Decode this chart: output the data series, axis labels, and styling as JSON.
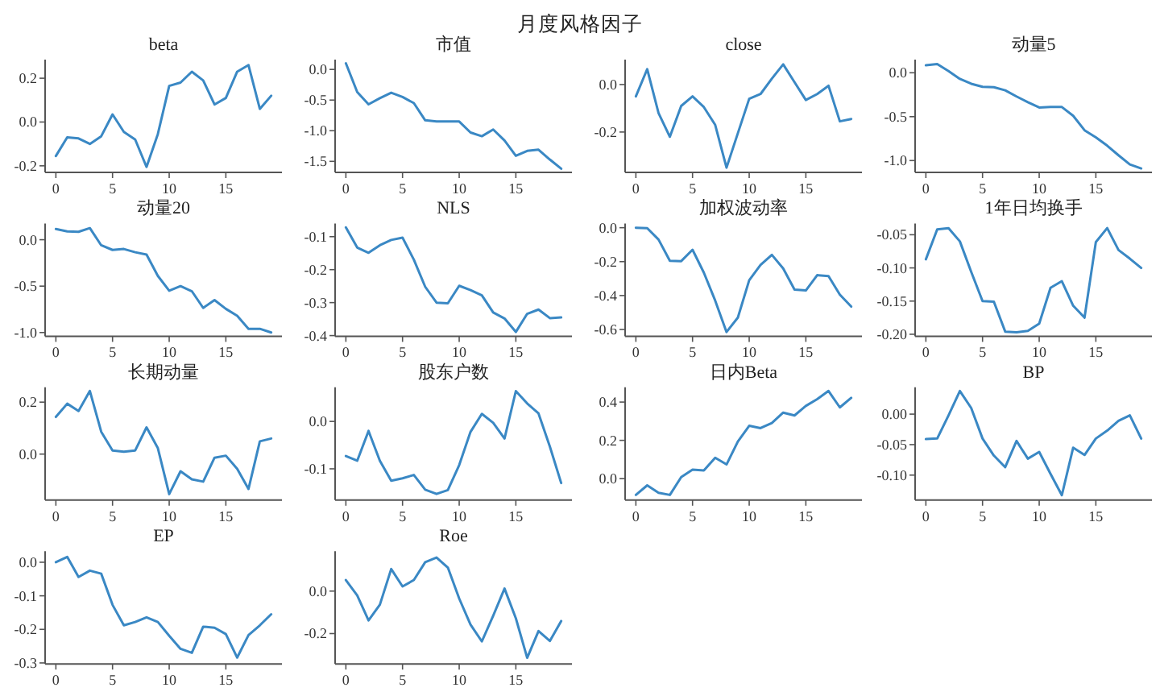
{
  "chart_data": [
    {
      "type": "line",
      "title": "beta",
      "annotations": [
        "月度风格因子"
      ],
      "x": [
        0,
        1,
        2,
        3,
        4,
        5,
        6,
        7,
        8,
        9,
        10,
        11,
        12,
        13,
        14,
        15,
        16,
        17,
        18,
        19
      ],
      "xlim": [
        -0.95,
        19.95
      ],
      "xticks": [
        0,
        5,
        10,
        15
      ],
      "ylim": [
        -0.23,
        0.285
      ],
      "yticks": [
        {
          "value": -0.2,
          "label": "-0.2"
        },
        {
          "value": 0,
          "label": "0.0"
        },
        {
          "value": 0.2,
          "label": "0.2"
        }
      ],
      "series": [
        {
          "color": "#3a88c4",
          "values": [
            -0.155,
            -0.07,
            -0.075,
            -0.1,
            -0.065,
            0.035,
            -0.045,
            -0.08,
            -0.205,
            -0.055,
            0.165,
            0.18,
            0.23,
            0.19,
            0.08,
            0.11,
            0.23,
            0.26,
            0.06,
            0.12
          ]
        }
      ]
    },
    {
      "type": "line",
      "title": "市值",
      "x": [
        0,
        1,
        2,
        3,
        4,
        5,
        6,
        7,
        8,
        9,
        10,
        11,
        12,
        13,
        14,
        15,
        16,
        17,
        18,
        19
      ],
      "xlim": [
        -0.95,
        19.95
      ],
      "xticks": [
        0,
        5,
        10,
        15
      ],
      "ylim": [
        -1.68,
        0.16
      ],
      "yticks": [
        {
          "value": -1.5,
          "label": "-1.5"
        },
        {
          "value": -1,
          "label": "-1.0"
        },
        {
          "value": -0.5,
          "label": "-0.5"
        },
        {
          "value": 0,
          "label": "0.0"
        }
      ],
      "series": [
        {
          "color": "#3a88c4",
          "values": [
            0.1,
            -0.37,
            -0.57,
            -0.47,
            -0.38,
            -0.45,
            -0.55,
            -0.83,
            -0.85,
            -0.85,
            -0.85,
            -1.03,
            -1.09,
            -0.98,
            -1.16,
            -1.41,
            -1.33,
            -1.31,
            -1.47,
            -1.62
          ]
        }
      ]
    },
    {
      "type": "line",
      "title": "close",
      "x": [
        0,
        1,
        2,
        3,
        4,
        5,
        6,
        7,
        8,
        9,
        10,
        11,
        12,
        13,
        14,
        15,
        16,
        17,
        18,
        19
      ],
      "xlim": [
        -0.95,
        19.95
      ],
      "xticks": [
        0,
        5,
        10,
        15
      ],
      "ylim": [
        -0.37,
        0.105
      ],
      "yticks": [
        {
          "value": -0.2,
          "label": "-0.2"
        },
        {
          "value": 0,
          "label": "0.0"
        }
      ],
      "series": [
        {
          "color": "#3a88c4",
          "values": [
            -0.05,
            0.065,
            -0.12,
            -0.22,
            -0.09,
            -0.05,
            -0.095,
            -0.17,
            -0.35,
            -0.205,
            -0.06,
            -0.04,
            0.025,
            0.085,
            0.01,
            -0.065,
            -0.04,
            -0.005,
            -0.155,
            -0.145
          ]
        }
      ]
    },
    {
      "type": "line",
      "title": "动量5",
      "x": [
        0,
        1,
        2,
        3,
        4,
        5,
        6,
        7,
        8,
        9,
        10,
        11,
        12,
        13,
        14,
        15,
        16,
        17,
        18,
        19
      ],
      "xlim": [
        -0.95,
        19.95
      ],
      "xticks": [
        0,
        5,
        10,
        15
      ],
      "ylim": [
        -1.135,
        0.15
      ],
      "yticks": [
        {
          "value": -1,
          "label": "-1.0"
        },
        {
          "value": -0.5,
          "label": "-0.5"
        },
        {
          "value": 0,
          "label": "0.0"
        }
      ],
      "series": [
        {
          "color": "#3a88c4",
          "values": [
            0.085,
            0.1,
            0.02,
            -0.07,
            -0.125,
            -0.16,
            -0.165,
            -0.2,
            -0.27,
            -0.335,
            -0.395,
            -0.39,
            -0.39,
            -0.49,
            -0.655,
            -0.735,
            -0.83,
            -0.94,
            -1.045,
            -1.09
          ]
        }
      ]
    },
    {
      "type": "line",
      "title": "动量20",
      "x": [
        0,
        1,
        2,
        3,
        4,
        5,
        6,
        7,
        8,
        9,
        10,
        11,
        12,
        13,
        14,
        15,
        16,
        17,
        18,
        19
      ],
      "xlim": [
        -0.95,
        19.95
      ],
      "xticks": [
        0,
        5,
        10,
        15
      ],
      "ylim": [
        -1.04,
        0.175
      ],
      "yticks": [
        {
          "value": -1,
          "label": "-1.0"
        },
        {
          "value": -0.5,
          "label": "-0.5"
        },
        {
          "value": 0,
          "label": "0.0"
        }
      ],
      "series": [
        {
          "color": "#3a88c4",
          "values": [
            0.115,
            0.09,
            0.085,
            0.125,
            -0.06,
            -0.11,
            -0.1,
            -0.135,
            -0.16,
            -0.39,
            -0.55,
            -0.5,
            -0.555,
            -0.735,
            -0.65,
            -0.745,
            -0.82,
            -0.96,
            -0.96,
            -1.0
          ]
        }
      ]
    },
    {
      "type": "line",
      "title": "NLS",
      "x": [
        0,
        1,
        2,
        3,
        4,
        5,
        6,
        7,
        8,
        9,
        10,
        11,
        12,
        13,
        14,
        15,
        16,
        17,
        18,
        19
      ],
      "xlim": [
        -0.95,
        19.95
      ],
      "xticks": [
        0,
        5,
        10,
        15
      ],
      "ylim": [
        -0.402,
        -0.06
      ],
      "yticks": [
        {
          "value": -0.4,
          "label": "-0.4"
        },
        {
          "value": -0.3,
          "label": "-0.3"
        },
        {
          "value": -0.2,
          "label": "-0.2"
        },
        {
          "value": -0.1,
          "label": "-0.1"
        }
      ],
      "series": [
        {
          "color": "#3a88c4",
          "values": [
            -0.072,
            -0.133,
            -0.149,
            -0.126,
            -0.11,
            -0.103,
            -0.17,
            -0.252,
            -0.3,
            -0.302,
            -0.249,
            -0.262,
            -0.278,
            -0.33,
            -0.348,
            -0.389,
            -0.334,
            -0.321,
            -0.347,
            -0.345
          ]
        }
      ]
    },
    {
      "type": "line",
      "title": "加权波动率",
      "x": [
        0,
        1,
        2,
        3,
        4,
        5,
        6,
        7,
        8,
        9,
        10,
        11,
        12,
        13,
        14,
        15,
        16,
        17,
        18,
        19
      ],
      "xlim": [
        -0.95,
        19.95
      ],
      "xticks": [
        0,
        5,
        10,
        15
      ],
      "ylim": [
        -0.64,
        0.025
      ],
      "yticks": [
        {
          "value": -0.6,
          "label": "-0.6"
        },
        {
          "value": -0.4,
          "label": "-0.4"
        },
        {
          "value": -0.2,
          "label": "-0.2"
        },
        {
          "value": 0,
          "label": "0.0"
        }
      ],
      "series": [
        {
          "color": "#3a88c4",
          "values": [
            0.0,
            -0.003,
            -0.07,
            -0.195,
            -0.197,
            -0.13,
            -0.265,
            -0.43,
            -0.615,
            -0.53,
            -0.31,
            -0.22,
            -0.16,
            -0.24,
            -0.365,
            -0.37,
            -0.28,
            -0.285,
            -0.395,
            -0.465
          ]
        }
      ]
    },
    {
      "type": "line",
      "title": "1年日均换手",
      "x": [
        0,
        1,
        2,
        3,
        4,
        5,
        6,
        7,
        8,
        9,
        10,
        11,
        12,
        13,
        14,
        15,
        16,
        17,
        18,
        19
      ],
      "xlim": [
        -0.95,
        19.95
      ],
      "xticks": [
        0,
        5,
        10,
        15
      ],
      "ylim": [
        -0.203,
        -0.033
      ],
      "yticks": [
        {
          "value": -0.2,
          "label": "-0.20"
        },
        {
          "value": -0.15,
          "label": "-0.15"
        },
        {
          "value": -0.1,
          "label": "-0.10"
        },
        {
          "value": -0.05,
          "label": "-0.05"
        }
      ],
      "series": [
        {
          "color": "#3a88c4",
          "values": [
            -0.087,
            -0.042,
            -0.04,
            -0.06,
            -0.106,
            -0.15,
            -0.151,
            -0.196,
            -0.197,
            -0.195,
            -0.184,
            -0.13,
            -0.12,
            -0.157,
            -0.175,
            -0.061,
            -0.04,
            -0.073,
            -0.086,
            -0.1
          ]
        }
      ]
    },
    {
      "type": "line",
      "title": "长期动量",
      "x": [
        0,
        1,
        2,
        3,
        4,
        5,
        6,
        7,
        8,
        9,
        10,
        11,
        12,
        13,
        14,
        15,
        16,
        17,
        18,
        19
      ],
      "xlim": [
        -0.95,
        19.95
      ],
      "xticks": [
        0,
        5,
        10,
        15
      ],
      "ylim": [
        -0.177,
        0.257
      ],
      "yticks": [
        {
          "value": 0,
          "label": "0.0"
        },
        {
          "value": 0.2,
          "label": "0.2"
        }
      ],
      "series": [
        {
          "color": "#3a88c4",
          "values": [
            0.143,
            0.194,
            0.166,
            0.243,
            0.086,
            0.014,
            0.009,
            0.014,
            0.103,
            0.023,
            -0.154,
            -0.066,
            -0.097,
            -0.106,
            -0.014,
            -0.006,
            -0.057,
            -0.134,
            0.049,
            0.06
          ]
        }
      ]
    },
    {
      "type": "line",
      "title": "股东户数",
      "x": [
        0,
        1,
        2,
        3,
        4,
        5,
        6,
        7,
        8,
        9,
        10,
        11,
        12,
        13,
        14,
        15,
        16,
        17,
        18,
        19
      ],
      "xlim": [
        -0.95,
        19.95
      ],
      "xticks": [
        0,
        5,
        10,
        15
      ],
      "ylim": [
        -0.166,
        0.072
      ],
      "yticks": [
        {
          "value": -0.1,
          "label": "-0.1"
        },
        {
          "value": 0,
          "label": "0.0"
        }
      ],
      "series": [
        {
          "color": "#3a88c4",
          "values": [
            -0.073,
            -0.083,
            -0.02,
            -0.083,
            -0.125,
            -0.12,
            -0.113,
            -0.144,
            -0.153,
            -0.145,
            -0.092,
            -0.022,
            0.016,
            -0.003,
            -0.036,
            0.064,
            0.038,
            0.017,
            -0.053,
            -0.13
          ]
        }
      ]
    },
    {
      "type": "line",
      "title": "日内Beta",
      "x": [
        0,
        1,
        2,
        3,
        4,
        5,
        6,
        7,
        8,
        9,
        10,
        11,
        12,
        13,
        14,
        15,
        16,
        17,
        18,
        19
      ],
      "xlim": [
        -0.95,
        19.95
      ],
      "xticks": [
        0,
        5,
        10,
        15
      ],
      "ylim": [
        -0.112,
        0.477
      ],
      "yticks": [
        {
          "value": 0,
          "label": "0.0"
        },
        {
          "value": 0.2,
          "label": "0.2"
        },
        {
          "value": 0.4,
          "label": "0.4"
        }
      ],
      "series": [
        {
          "color": "#3a88c4",
          "values": [
            -0.085,
            -0.035,
            -0.074,
            -0.085,
            0.008,
            0.047,
            0.043,
            0.109,
            0.074,
            0.194,
            0.276,
            0.264,
            0.291,
            0.345,
            0.33,
            0.38,
            0.415,
            0.458,
            0.372,
            0.422
          ]
        }
      ]
    },
    {
      "type": "line",
      "title": "BP",
      "x": [
        0,
        1,
        2,
        3,
        4,
        5,
        6,
        7,
        8,
        9,
        10,
        11,
        12,
        13,
        14,
        15,
        16,
        17,
        18,
        19
      ],
      "xlim": [
        -0.95,
        19.95
      ],
      "xticks": [
        0,
        5,
        10,
        15
      ],
      "ylim": [
        -0.141,
        0.044
      ],
      "yticks": [
        {
          "value": -0.1,
          "label": "-0.10"
        },
        {
          "value": -0.05,
          "label": "-0.05"
        },
        {
          "value": 0,
          "label": "0.00"
        }
      ],
      "series": [
        {
          "color": "#3a88c4",
          "values": [
            -0.041,
            -0.04,
            -0.002,
            0.038,
            0.01,
            -0.04,
            -0.068,
            -0.087,
            -0.044,
            -0.073,
            -0.062,
            -0.098,
            -0.133,
            -0.055,
            -0.067,
            -0.04,
            -0.027,
            -0.011,
            -0.002,
            -0.04
          ]
        }
      ]
    },
    {
      "type": "line",
      "title": "EP",
      "x": [
        0,
        1,
        2,
        3,
        4,
        5,
        6,
        7,
        8,
        9,
        10,
        11,
        12,
        13,
        14,
        15,
        16,
        17,
        18,
        19
      ],
      "xlim": [
        -0.95,
        19.95
      ],
      "xticks": [
        0,
        5,
        10,
        15
      ],
      "ylim": [
        -0.303,
        0.033
      ],
      "yticks": [
        {
          "value": -0.3,
          "label": "-0.3"
        },
        {
          "value": -0.2,
          "label": "-0.2"
        },
        {
          "value": -0.1,
          "label": "-0.1"
        },
        {
          "value": 0,
          "label": "0.0"
        }
      ],
      "series": [
        {
          "color": "#3a88c4",
          "values": [
            0.0,
            0.016,
            -0.044,
            -0.025,
            -0.034,
            -0.127,
            -0.188,
            -0.178,
            -0.164,
            -0.178,
            -0.219,
            -0.258,
            -0.27,
            -0.192,
            -0.195,
            -0.214,
            -0.284,
            -0.217,
            -0.188,
            -0.155
          ]
        }
      ]
    },
    {
      "type": "line",
      "title": "Roe",
      "x": [
        0,
        1,
        2,
        3,
        4,
        5,
        6,
        7,
        8,
        9,
        10,
        11,
        12,
        13,
        14,
        15,
        16,
        17,
        18,
        19
      ],
      "xlim": [
        -0.95,
        19.95
      ],
      "xticks": [
        0,
        5,
        10,
        15
      ],
      "ylim": [
        -0.343,
        0.188
      ],
      "yticks": [
        {
          "value": -0.2,
          "label": "-0.2"
        },
        {
          "value": 0,
          "label": "0.0"
        }
      ],
      "series": [
        {
          "color": "#3a88c4",
          "values": [
            0.052,
            -0.02,
            -0.138,
            -0.064,
            0.104,
            0.022,
            0.052,
            0.136,
            0.158,
            0.111,
            -0.035,
            -0.158,
            -0.237,
            -0.116,
            0.012,
            -0.128,
            -0.314,
            -0.188,
            -0.235,
            -0.141
          ]
        }
      ]
    }
  ]
}
